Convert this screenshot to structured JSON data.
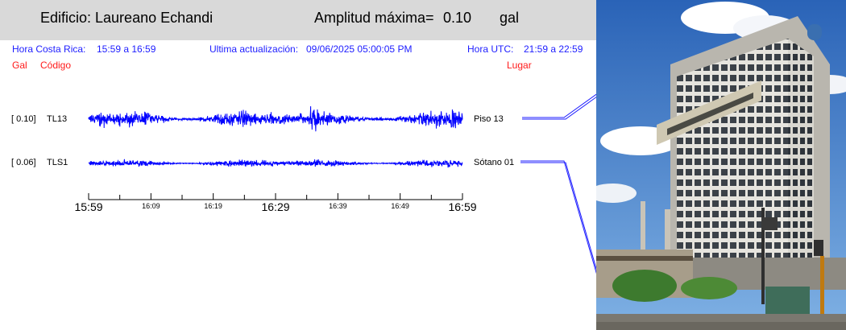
{
  "header": {
    "building": "Edificio: Laureano Echandi",
    "amplitude_label": "Amplitud máxima=",
    "amplitude_value": "0.10",
    "amplitude_unit": "gal"
  },
  "info": {
    "cr_label": "Hora Costa Rica:",
    "cr_range": "15:59 a 16:59",
    "update_label": "Ultima actualización:",
    "update_value": "09/06/2025 05:00:05 PM",
    "utc_label": "Hora UTC:",
    "utc_range": "21:59 a 22:59"
  },
  "columns": {
    "gal": "Gal",
    "code": "Código",
    "place": "Lugar"
  },
  "channels": [
    {
      "amp": "[   0.10]",
      "code": "TL13",
      "place": "Piso 13"
    },
    {
      "amp": "[   0.06]",
      "code": "TLS1",
      "place": "Sótano 01"
    }
  ],
  "time_axis": {
    "labels": [
      "15:59",
      "16:09",
      "16:19",
      "16:29",
      "16:39",
      "16:49",
      "16:59"
    ],
    "major": [
      true,
      false,
      false,
      true,
      false,
      false,
      true
    ]
  },
  "colors": {
    "trace": "#0000ff",
    "info_text": "#1d1dff",
    "column_header": "#ff1a1a",
    "header_bg": "#d9d9d9"
  }
}
